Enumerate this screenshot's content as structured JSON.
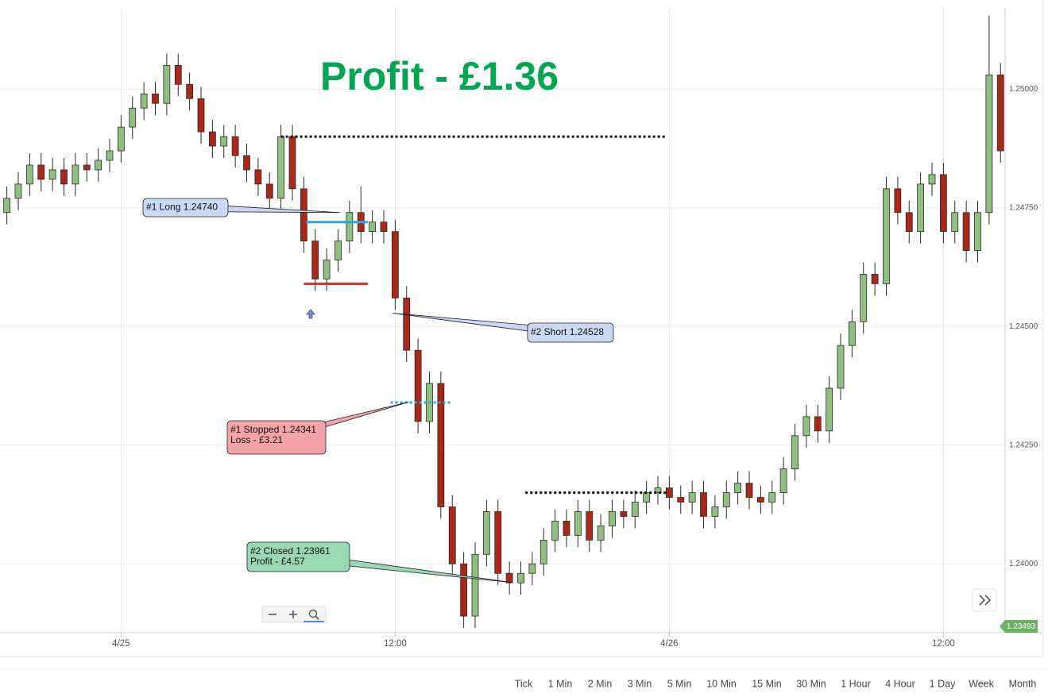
{
  "chart_data": {
    "type": "candlestick",
    "title": "Profit - £1.36",
    "x": [
      -5,
      -4.5,
      -4,
      -3.5,
      -3,
      -2.5,
      -2,
      -1.5,
      -1,
      -0.5,
      0,
      0.5,
      1,
      1.5,
      2,
      2.5,
      3,
      3.5,
      4,
      4.5,
      5,
      5.5,
      6,
      6.5,
      7,
      7.5,
      8,
      8.5,
      9,
      9.5,
      10,
      10.5,
      11,
      11.5,
      12,
      12.5,
      13,
      13.5,
      14,
      14.5,
      15,
      15.5,
      16,
      16.5,
      17,
      17.5,
      18,
      18.5,
      19,
      19.5,
      20,
      20.5,
      21,
      21.5,
      22,
      22.5,
      23,
      23.5,
      24,
      24.5,
      25,
      25.5,
      26,
      26.5,
      27,
      27.5,
      28,
      28.5,
      29,
      29.5,
      30,
      30.5,
      31,
      31.5,
      32,
      32.5,
      33,
      33.5,
      34,
      34.5,
      35,
      35.5,
      36,
      36.5,
      37,
      37.5,
      38,
      38.5
    ],
    "open": [
      1.2474,
      1.2477,
      1.248,
      1.2484,
      1.2481,
      1.2483,
      1.248,
      1.2484,
      1.2483,
      1.2485,
      1.2487,
      1.2492,
      1.2496,
      1.2499,
      1.2497,
      1.2505,
      1.2501,
      1.2498,
      1.2491,
      1.2488,
      1.249,
      1.2486,
      1.2483,
      1.248,
      1.2477,
      1.249,
      1.2479,
      1.2468,
      1.246,
      1.2464,
      1.2468,
      1.2474,
      1.247,
      1.2472,
      1.247,
      1.2456,
      1.2445,
      1.243,
      1.2438,
      1.2412,
      1.24,
      1.2389,
      1.2402,
      1.2411,
      1.2398,
      1.2396,
      1.2398,
      1.24,
      1.2405,
      1.2409,
      1.2406,
      1.2411,
      1.2405,
      1.2408,
      1.2411,
      1.241,
      1.2413,
      1.2415,
      1.2416,
      1.2414,
      1.2413,
      1.2415,
      1.241,
      1.2412,
      1.2415,
      1.2417,
      1.2414,
      1.2413,
      1.2415,
      1.242,
      1.2427,
      1.2431,
      1.2428,
      1.2437,
      1.2446,
      1.2451,
      1.2461,
      1.2459,
      1.2479,
      1.2474,
      1.247,
      1.248,
      1.2482,
      1.247,
      1.2474,
      1.2466,
      1.2474,
      1.2503
    ],
    "high": [
      1.24795,
      1.24825,
      1.24865,
      1.24865,
      1.24855,
      1.24855,
      1.24865,
      1.24865,
      1.24875,
      1.24895,
      1.24945,
      1.24985,
      1.25015,
      1.25015,
      1.25075,
      1.25075,
      1.25035,
      1.25005,
      1.24935,
      1.24925,
      1.24925,
      1.24885,
      1.24855,
      1.24825,
      1.24925,
      1.24925,
      1.24815,
      1.24705,
      1.24665,
      1.24705,
      1.24765,
      1.24795,
      1.24745,
      1.24745,
      1.24725,
      1.24585,
      1.24475,
      1.24405,
      1.24405,
      1.24145,
      1.24025,
      1.24045,
      1.24135,
      1.24135,
      1.24005,
      1.24005,
      1.24025,
      1.24075,
      1.24115,
      1.24115,
      1.24135,
      1.24135,
      1.24105,
      1.24135,
      1.24135,
      1.24155,
      1.24175,
      1.24185,
      1.24185,
      1.24165,
      1.24175,
      1.24175,
      1.24145,
      1.24175,
      1.24195,
      1.24195,
      1.24165,
      1.24175,
      1.24225,
      1.24295,
      1.24335,
      1.24335,
      1.24395,
      1.24485,
      1.24535,
      1.24635,
      1.24635,
      1.24815,
      1.24815,
      1.24765,
      1.24825,
      1.24845,
      1.24845,
      1.24765,
      1.24765,
      1.24765,
      1.25155,
      1.25055
    ],
    "low": [
      1.24715,
      1.24745,
      1.24775,
      1.24785,
      1.24785,
      1.24775,
      1.24775,
      1.24805,
      1.24805,
      1.24825,
      1.24845,
      1.24895,
      1.24935,
      1.24945,
      1.24945,
      1.24985,
      1.24955,
      1.24885,
      1.24855,
      1.24855,
      1.24835,
      1.24805,
      1.24775,
      1.24745,
      1.24745,
      1.24765,
      1.24655,
      1.24575,
      1.24575,
      1.24615,
      1.24655,
      1.24675,
      1.24675,
      1.24675,
      1.24535,
      1.24425,
      1.24275,
      1.24275,
      1.24095,
      1.23975,
      1.23865,
      1.23865,
      1.23995,
      1.23955,
      1.23935,
      1.23935,
      1.23955,
      1.23975,
      1.24025,
      1.24035,
      1.24035,
      1.24025,
      1.24025,
      1.24055,
      1.24075,
      1.24075,
      1.24105,
      1.24125,
      1.24115,
      1.24105,
      1.24105,
      1.24075,
      1.24075,
      1.24095,
      1.24125,
      1.24115,
      1.24105,
      1.24105,
      1.24125,
      1.24175,
      1.24245,
      1.24255,
      1.24255,
      1.24345,
      1.24435,
      1.24485,
      1.24565,
      1.24565,
      1.24715,
      1.24675,
      1.24675,
      1.24775,
      1.24675,
      1.24675,
      1.24635,
      1.24635,
      1.24715,
      1.24845
    ],
    "close": [
      1.2477,
      1.248,
      1.2484,
      1.2481,
      1.2483,
      1.248,
      1.2484,
      1.2483,
      1.2485,
      1.2487,
      1.2492,
      1.2496,
      1.2499,
      1.2497,
      1.2505,
      1.2501,
      1.2498,
      1.2491,
      1.2488,
      1.249,
      1.2486,
      1.2483,
      1.248,
      1.2477,
      1.249,
      1.2479,
      1.2468,
      1.246,
      1.2464,
      1.2468,
      1.2474,
      1.247,
      1.2472,
      1.247,
      1.2456,
      1.2445,
      1.243,
      1.2438,
      1.2412,
      1.24,
      1.2389,
      1.2402,
      1.2411,
      1.2398,
      1.2396,
      1.2398,
      1.24,
      1.2405,
      1.2409,
      1.2406,
      1.2411,
      1.2405,
      1.2408,
      1.2411,
      1.241,
      1.2413,
      1.2415,
      1.2416,
      1.2414,
      1.2413,
      1.2415,
      1.241,
      1.2412,
      1.2415,
      1.2417,
      1.2414,
      1.2413,
      1.2415,
      1.242,
      1.2427,
      1.2431,
      1.2428,
      1.2437,
      1.2446,
      1.2451,
      1.2461,
      1.2459,
      1.2479,
      1.2474,
      1.247,
      1.248,
      1.2482,
      1.247,
      1.2474,
      1.2466,
      1.2474,
      1.2503,
      1.2487
    ],
    "up_color": "#8fc080",
    "down_color": "#a8281a",
    "xlim": [
      -5.3,
      38.7
    ],
    "xticks": [
      {
        "value": 0,
        "label": "4/25"
      },
      {
        "value": 12,
        "label": "12:00"
      },
      {
        "value": 24,
        "label": "4/26"
      },
      {
        "value": 36,
        "label": "12:00"
      }
    ],
    "ylim": [
      1.23855,
      1.25171
    ],
    "yticks": [
      {
        "value": 1.24,
        "label": "1.24000"
      },
      {
        "value": 1.2425,
        "label": "1.24250"
      },
      {
        "value": 1.245,
        "label": "1.24500"
      },
      {
        "value": 1.2475,
        "label": "1.24750"
      },
      {
        "value": 1.25,
        "label": "1.25000"
      }
    ],
    "grid": true,
    "levels": [
      {
        "value": 1.249,
        "from": 7,
        "to": 23.9,
        "color": "#111111",
        "dash": true
      },
      {
        "value": 1.2415,
        "from": 17.7,
        "to": 23.9,
        "color": "#111111",
        "dash": true
      },
      {
        "value": 1.2472,
        "from": 8.1,
        "to": 10.8,
        "color": "#29a8e0",
        "dash": false
      },
      {
        "value": 1.2459,
        "from": 8,
        "to": 10.8,
        "color": "#e0303a",
        "dash": false
      },
      {
        "value": 1.2434,
        "from": 11.8,
        "to": 14.5,
        "color": "#29a8e0",
        "dash": true
      }
    ],
    "callouts": [
      {
        "lines": [
          "#1 Long 1.24740"
        ],
        "x": 9.6,
        "y": 1.2474,
        "fill": "#c9d8f4"
      },
      {
        "lines": [
          "#2 Short 1.24528"
        ],
        "x": 11.9,
        "y": 1.24528,
        "fill": "#c9d8f4"
      },
      {
        "lines": [
          "#1 Stopped 1.24341",
          "Loss - £3.21"
        ],
        "x": 12.6,
        "y": 1.24341,
        "fill": "#f4a3a8"
      },
      {
        "lines": [
          "#2 Closed 1.23961",
          "Profit - £4.57"
        ],
        "x": 17.1,
        "y": 1.23961,
        "fill": "#9ad8b4"
      }
    ],
    "last_price": "1.23493"
  },
  "timeframes": [
    "Tick",
    "1 Min",
    "2 Min",
    "3 Min",
    "5 Min",
    "10 Min",
    "15 Min",
    "30 Min",
    "1 Hour",
    "4 Hour",
    "1 Day",
    "Week",
    "Month"
  ]
}
